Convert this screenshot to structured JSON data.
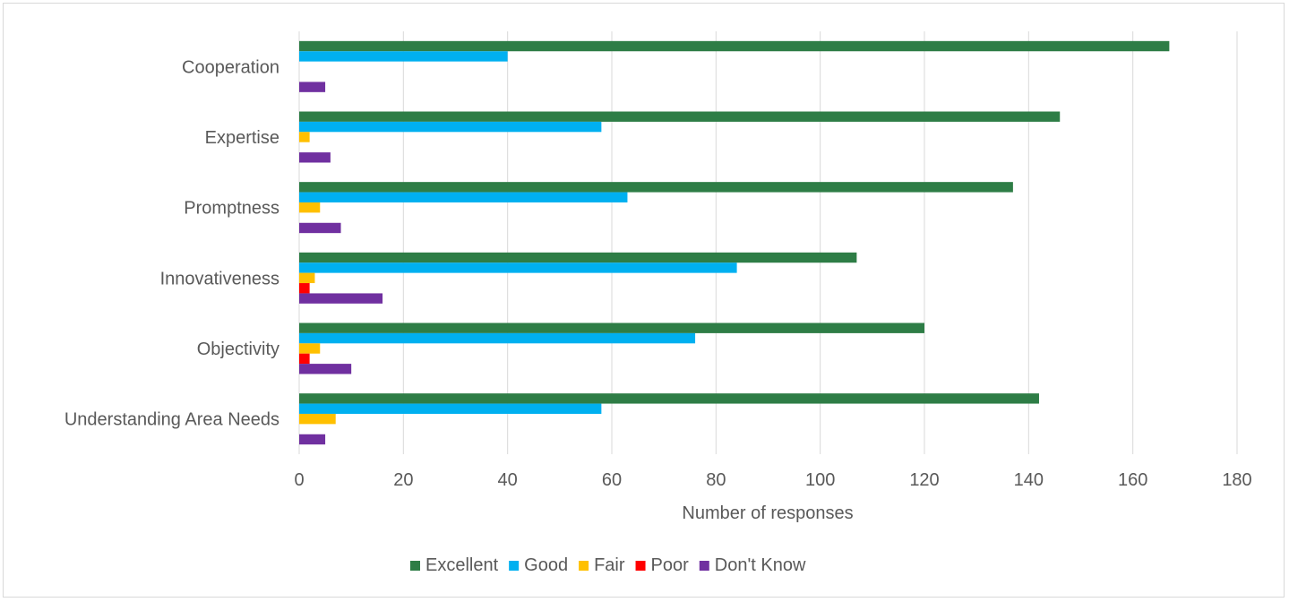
{
  "chart_data": {
    "type": "bar",
    "orientation": "horizontal",
    "categories": [
      "Cooperation",
      "Expertise",
      "Promptness",
      "Innovativeness",
      "Objectivity",
      "Understanding Area Needs"
    ],
    "series": [
      {
        "name": "Excellent",
        "color": "#2e7d46",
        "values": [
          167,
          146,
          137,
          107,
          120,
          142
        ]
      },
      {
        "name": "Good",
        "color": "#00b0f0",
        "values": [
          40,
          58,
          63,
          84,
          76,
          58
        ]
      },
      {
        "name": "Fair",
        "color": "#ffc000",
        "values": [
          0,
          2,
          4,
          3,
          4,
          7
        ]
      },
      {
        "name": "Poor",
        "color": "#ff0000",
        "values": [
          0,
          0,
          0,
          2,
          2,
          0
        ]
      },
      {
        "name": "Don't Know",
        "color": "#7030a0",
        "values": [
          5,
          6,
          8,
          16,
          10,
          5
        ]
      }
    ],
    "xlabel": "Number of responses",
    "ylabel": "",
    "xlim": [
      0,
      180
    ],
    "xticks": [
      0,
      20,
      40,
      60,
      80,
      100,
      120,
      140,
      160,
      180
    ],
    "grid": true,
    "legend_position": "bottom"
  }
}
